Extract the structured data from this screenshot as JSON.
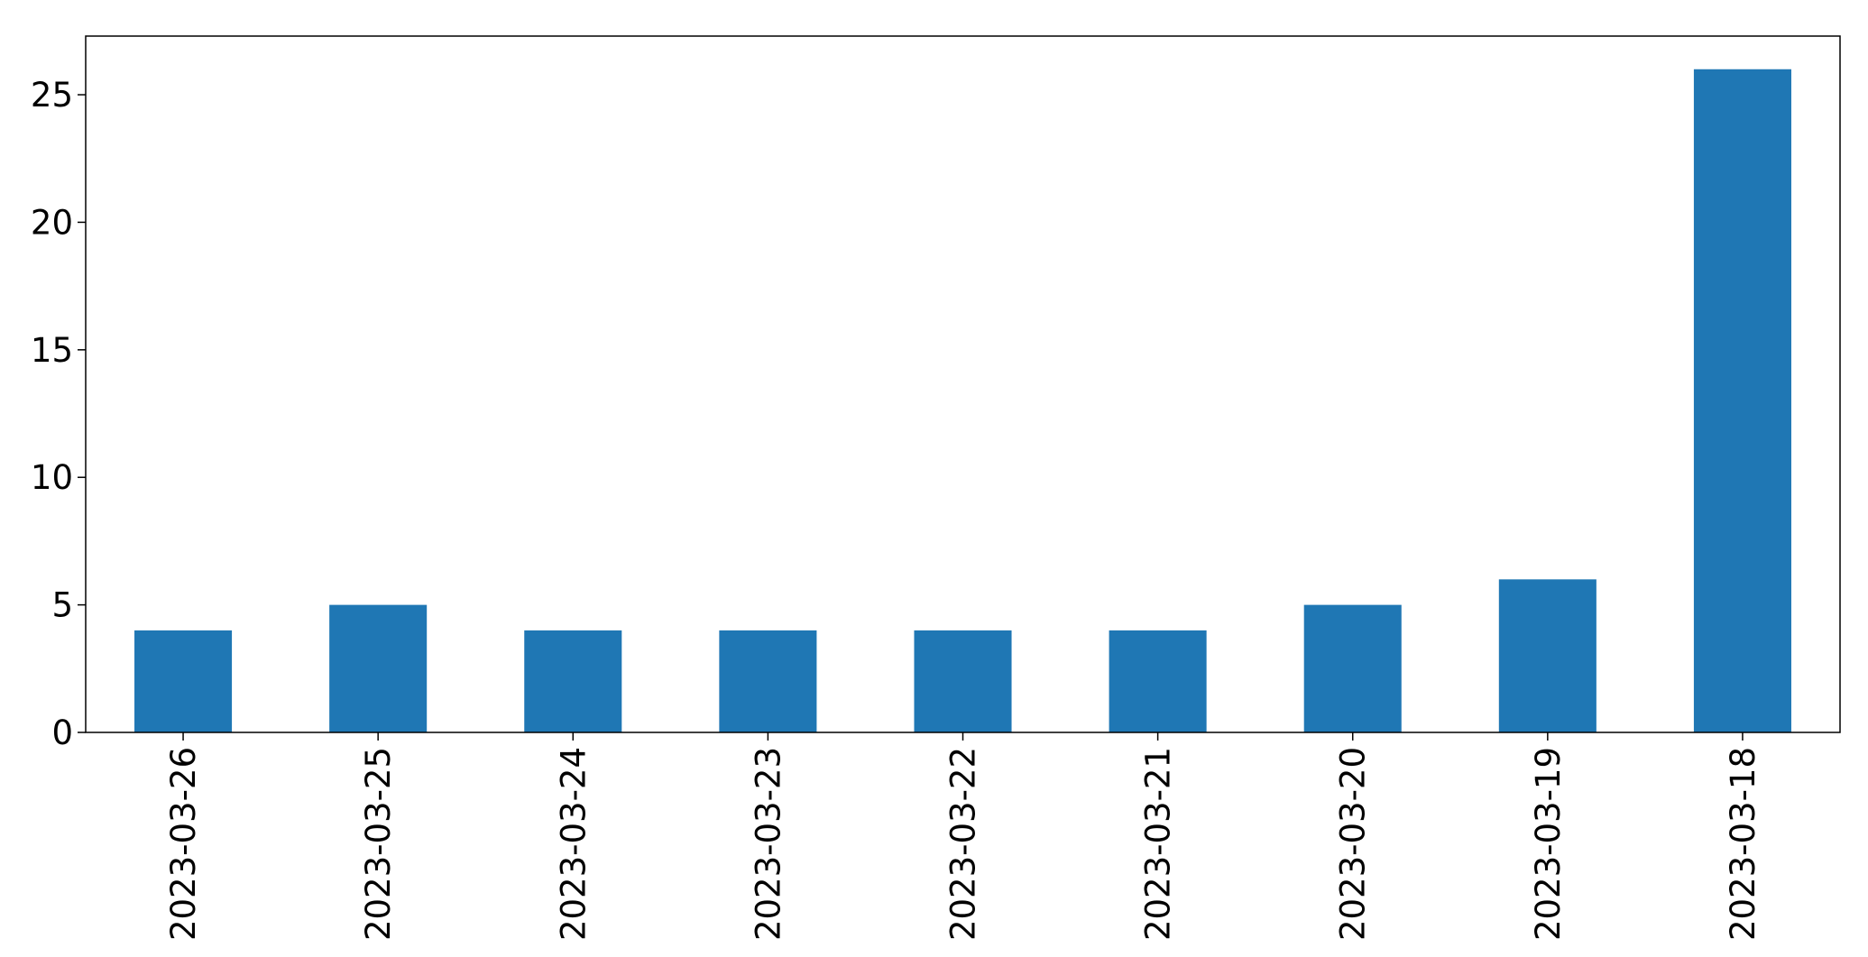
{
  "chart_data": {
    "type": "bar",
    "title": "",
    "xlabel": "",
    "ylabel": "",
    "categories": [
      "2023-03-26",
      "2023-03-25",
      "2023-03-24",
      "2023-03-23",
      "2023-03-22",
      "2023-03-21",
      "2023-03-20",
      "2023-03-19",
      "2023-03-18"
    ],
    "values": [
      4,
      5,
      4,
      4,
      4,
      4,
      5,
      6,
      26
    ],
    "ylim": [
      0,
      27.3
    ],
    "yticks": [
      0,
      5,
      10,
      15,
      20,
      25
    ],
    "bar_color": "#1f77b4",
    "grid": false,
    "legend": "none"
  }
}
